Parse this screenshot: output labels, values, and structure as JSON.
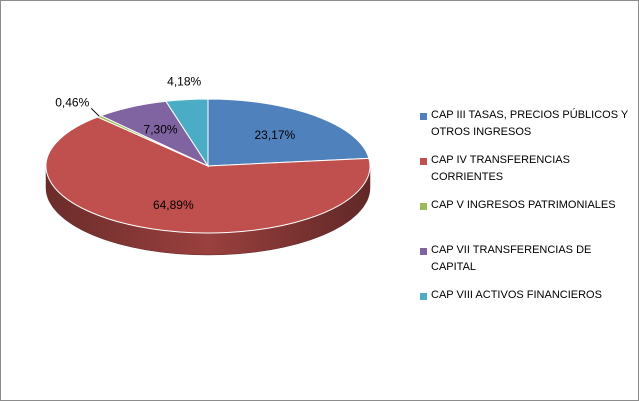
{
  "chart_data": {
    "type": "pie",
    "style": "3d",
    "slices": [
      {
        "label": "CAP III TASAS, PRECIOS PÚBLICOS Y OTROS INGRESOS",
        "value": 23.17,
        "display": "23,17%",
        "color": "#4f81bd"
      },
      {
        "label": "CAP IV TRANSFERENCIAS CORRIENTES",
        "value": 64.89,
        "display": "64,89%",
        "color": "#c0504d"
      },
      {
        "label": "CAP V INGRESOS PATRIMONIALES",
        "value": 0.46,
        "display": "0,46%",
        "color": "#9bbb59"
      },
      {
        "label": "CAP VII TRANSFERENCIAS DE CAPITAL",
        "value": 7.3,
        "display": "7,30%",
        "color": "#8064a2"
      },
      {
        "label": "CAP VIII ACTIVOS FINANCIEROS",
        "value": 4.18,
        "display": "4,18%",
        "color": "#4bacc6"
      }
    ],
    "legend_position": "right"
  }
}
